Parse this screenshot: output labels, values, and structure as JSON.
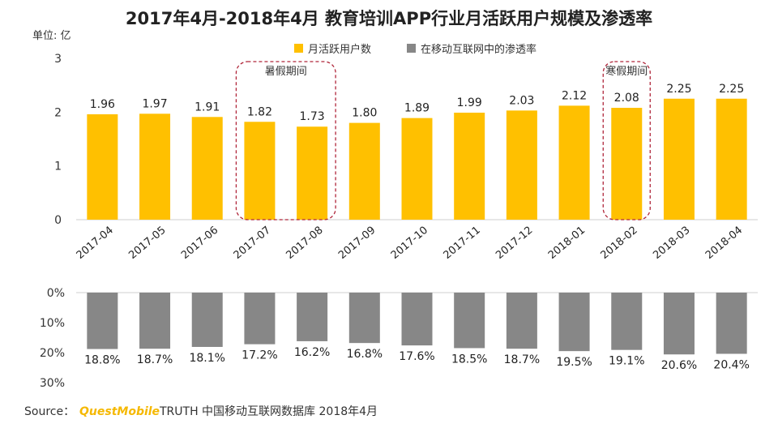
{
  "chart_data": [
    {
      "type": "bar",
      "title": "2017年4月-2018年4月 教育培训APP行业月活跃用户规模及渗透率",
      "ylabel": "单位: 亿",
      "ylim": [
        0,
        3
      ],
      "yticks": [
        "0",
        "1",
        "2",
        "3"
      ],
      "categories": [
        "2017-04",
        "2017-05",
        "2017-06",
        "2017-07",
        "2017-08",
        "2017-09",
        "2017-10",
        "2017-11",
        "2017-12",
        "2018-01",
        "2018-02",
        "2018-03",
        "2018-04"
      ],
      "series": [
        {
          "name": "月活跃用户数",
          "values": [
            1.96,
            1.97,
            1.91,
            1.82,
            1.73,
            1.8,
            1.89,
            1.99,
            2.03,
            2.12,
            2.08,
            2.25,
            2.25
          ]
        }
      ],
      "value_labels": [
        "1.96",
        "1.97",
        "1.91",
        "1.82",
        "1.73",
        "1.80",
        "1.89",
        "1.99",
        "2.03",
        "2.12",
        "2.08",
        "2.25",
        "2.25"
      ],
      "annotations": [
        {
          "label": "暑假期间",
          "categories": [
            "2017-07",
            "2017-08"
          ]
        },
        {
          "label": "寒假期间",
          "categories": [
            "2018-02"
          ]
        }
      ],
      "color": "#ffc000"
    },
    {
      "type": "bar",
      "orientation": "downward",
      "ylim": [
        0,
        30
      ],
      "yticks": [
        "0%",
        "10%",
        "20%",
        "30%"
      ],
      "categories": [
        "2017-04",
        "2017-05",
        "2017-06",
        "2017-07",
        "2017-08",
        "2017-09",
        "2017-10",
        "2017-11",
        "2017-12",
        "2018-01",
        "2018-02",
        "2018-03",
        "2018-04"
      ],
      "series": [
        {
          "name": "在移动互联网中的渗透率",
          "values": [
            18.8,
            18.7,
            18.1,
            17.2,
            16.2,
            16.8,
            17.6,
            18.5,
            18.7,
            19.5,
            19.1,
            20.6,
            20.4
          ]
        }
      ],
      "value_labels": [
        "18.8%",
        "18.7%",
        "18.1%",
        "17.2%",
        "16.2%",
        "16.8%",
        "17.6%",
        "18.5%",
        "18.7%",
        "19.5%",
        "19.1%",
        "20.6%",
        "20.4%"
      ],
      "color": "#878787"
    }
  ],
  "legend": [
    {
      "label": "月活跃用户数",
      "color": "#ffc000"
    },
    {
      "label": "在移动互联网中的渗透率",
      "color": "#878787"
    }
  ],
  "source": {
    "prefix": "Source：",
    "brand": "QuestMobile",
    "text": "TRUTH 中国移动互联网数据库 2018年4月"
  }
}
